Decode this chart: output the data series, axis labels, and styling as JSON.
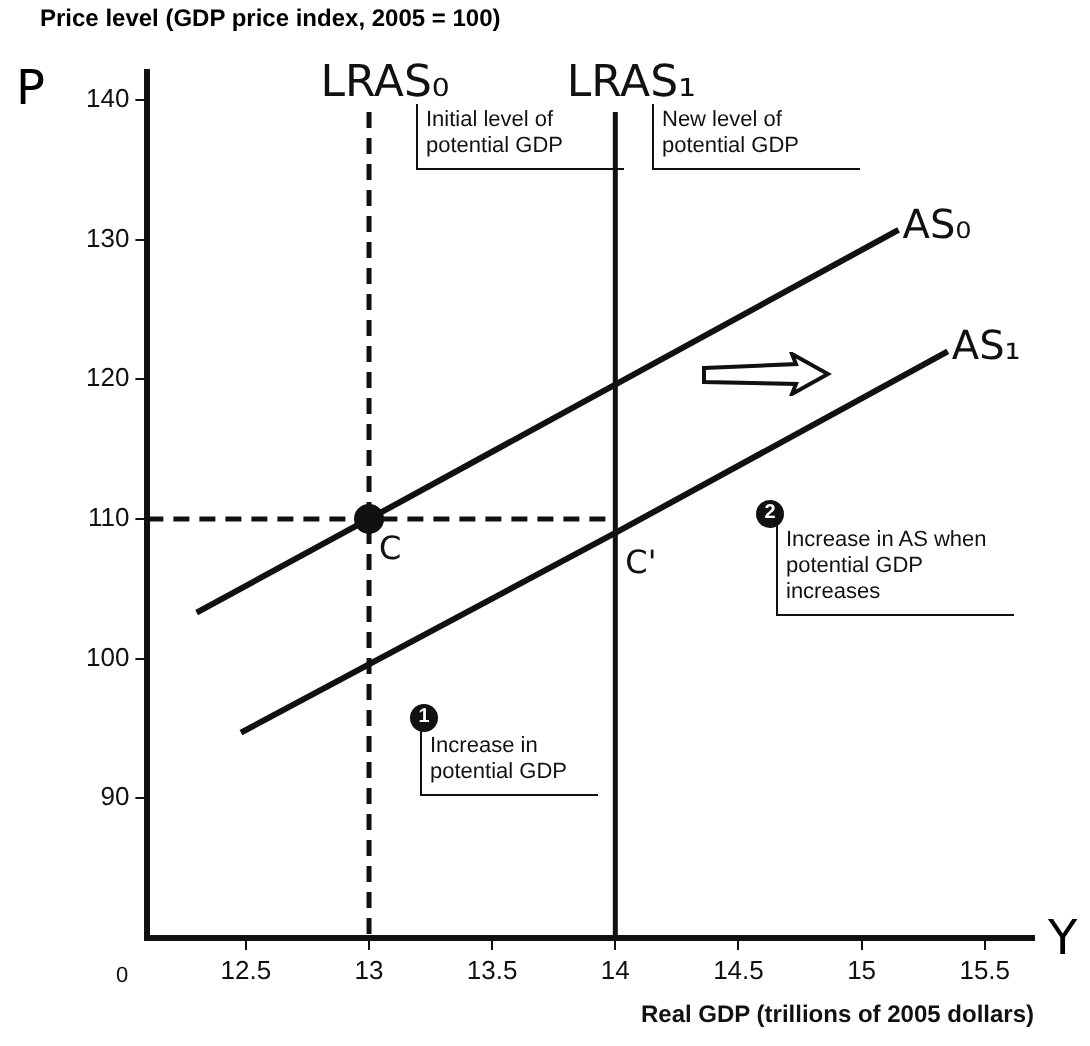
{
  "chart_data": {
    "type": "line",
    "ylabel": "Price level (GDP price index, 2005 = 100)",
    "xlabel": "Real GDP (trillions of 2005 dollars)",
    "xlim": [
      12.1,
      15.7
    ],
    "ylim": [
      80,
      142
    ],
    "xticks": [
      12.5,
      13.0,
      13.5,
      14.0,
      14.5,
      15.0,
      15.5
    ],
    "yticks": [
      90,
      100,
      110,
      120,
      130,
      140
    ],
    "grid": false,
    "legend": false,
    "marker": "none",
    "series": [
      {
        "name": "AS₀",
        "color": "#111111",
        "x": [
          12.3,
          13.0,
          15.15
        ],
        "values": [
          103.3,
          110,
          130.7
        ]
      },
      {
        "name": "AS₁",
        "color": "#111111",
        "x": [
          12.48,
          14.0,
          15.35
        ],
        "values": [
          94.7,
          109,
          122
        ]
      },
      {
        "type": "scatter",
        "color": "#111111",
        "x": [
          13.0
        ],
        "values": [
          110
        ],
        "marker": "circle"
      }
    ],
    "ref_lines": [
      {
        "axis": "x",
        "value": 13.0,
        "label": "LRAS₀",
        "line_style": "dashed",
        "color": "#111111"
      },
      {
        "axis": "x",
        "value": 14.0,
        "label": "LRAS₁",
        "line_style": "solid",
        "color": "#111111"
      },
      {
        "axis": "y",
        "value": 110,
        "label": null,
        "line_style": "dashed",
        "color": "#111111"
      }
    ],
    "annotations": [
      {
        "text": "C",
        "x": 13.0,
        "y": 110
      },
      {
        "text": "C'",
        "x": 14.0,
        "y": 109
      },
      "Initial level of potential GDP",
      "New level of potential GDP",
      "Increase in AS when potential GDP increases",
      "Increase in potential GDP",
      "1",
      "2",
      "P",
      "Y",
      "0"
    ]
  }
}
